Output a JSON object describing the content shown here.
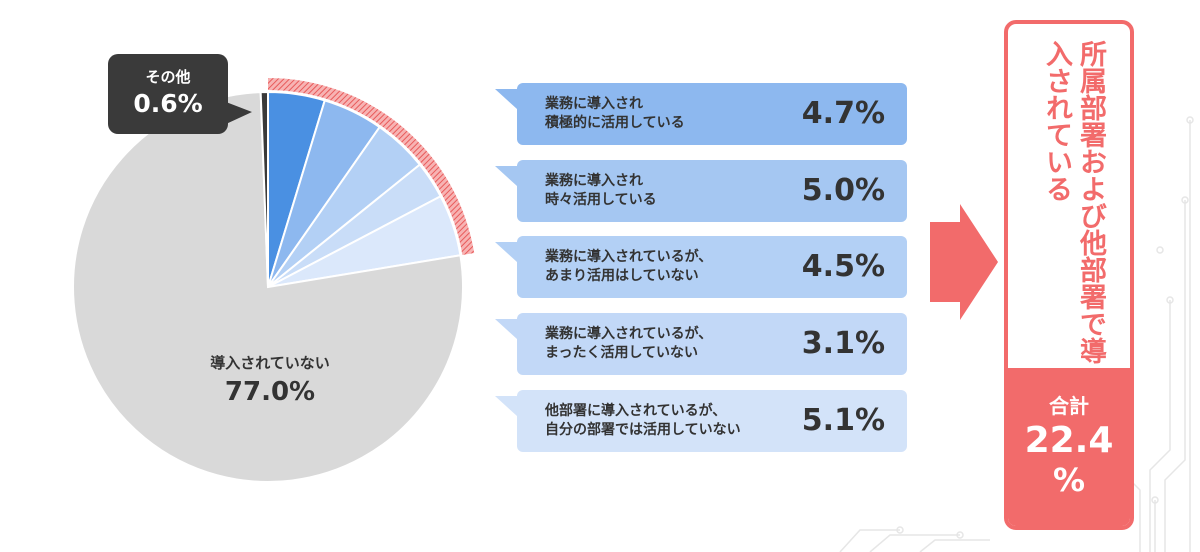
{
  "chart_data": {
    "type": "pie",
    "title": "",
    "series": [
      {
        "label_lines": [
          "業務に導入され",
          "積極的に活用している"
        ],
        "value": 4.7,
        "value_label": "4.7%",
        "color": "#4a90e2"
      },
      {
        "label_lines": [
          "業務に導入され",
          "時々活用している"
        ],
        "value": 5.0,
        "value_label": "5.0%",
        "color": "#8db8ef"
      },
      {
        "label_lines": [
          "業務に導入されているが、",
          "あまり活用はしていない"
        ],
        "value": 4.5,
        "value_label": "4.5%",
        "color": "#b3d0f5"
      },
      {
        "label_lines": [
          "業務に導入されているが、",
          "まったく活用していない"
        ],
        "value": 3.1,
        "value_label": "3.1%",
        "color": "#c9ddf8"
      },
      {
        "label_lines": [
          "他部署に導入されているが、",
          "自分の部署では活用していない"
        ],
        "value": 5.1,
        "value_label": "5.1%",
        "color": "#dbe8fb"
      },
      {
        "label": "導入されていない",
        "value": 77.0,
        "value_label": "77.0%",
        "color": "#d9d9d9"
      },
      {
        "label": "その他",
        "value": 0.6,
        "value_label": "0.6%",
        "color": "#3a3a3a"
      }
    ]
  },
  "colors": {
    "accent": "#f26b6b",
    "bubble_text": "#333333",
    "callout_bg": "#3a3a3a"
  },
  "summary": {
    "vertical_title": "所属部署および他部署で導入されている",
    "total_label": "合計",
    "total_value": "22.4",
    "total_unit": "%"
  },
  "other_callout": {
    "label": "その他",
    "value": "0.6%"
  },
  "not_introduced_label": {
    "label": "導入されていない",
    "value": "77.0%"
  }
}
